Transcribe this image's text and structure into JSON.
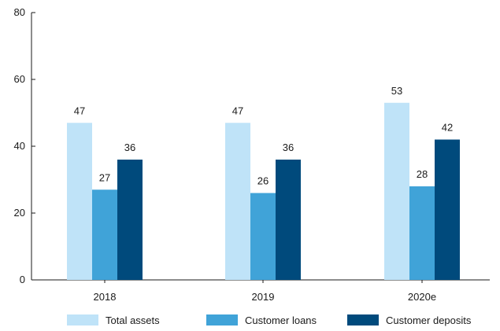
{
  "chart_data": {
    "type": "bar",
    "title": "",
    "xlabel": "",
    "ylabel": "",
    "ylim": [
      0,
      80
    ],
    "yticks": [
      0,
      20,
      40,
      60,
      80
    ],
    "grid": false,
    "legend_position": "bottom",
    "categories": [
      "2018",
      "2019",
      "2020e"
    ],
    "series": [
      {
        "name": "Total assets",
        "color": "#bfe3f8",
        "values": [
          47,
          47,
          53
        ]
      },
      {
        "name": "Customer loans",
        "color": "#40a3d8",
        "values": [
          27,
          26,
          28
        ]
      },
      {
        "name": "Customer deposits",
        "color": "#004a7c",
        "values": [
          36,
          36,
          42
        ]
      }
    ]
  }
}
